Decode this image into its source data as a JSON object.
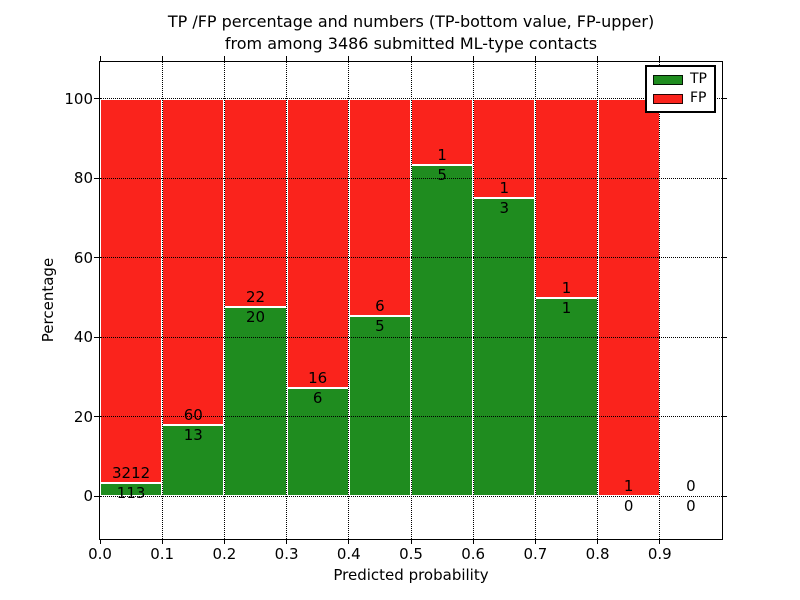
{
  "chart_data": {
    "type": "bar",
    "subtype": "stacked-percentage",
    "title_line1": "TP /FP percentage and numbers (TP-bottom value, FP-upper)",
    "title_line2": "from among 3486 submitted ML-type contacts",
    "xlabel": "Predicted probability",
    "ylabel": "Percentage",
    "total_contacts": 3486,
    "xlim": [
      0.0,
      1.0
    ],
    "ylim": [
      -10.8,
      109.3
    ],
    "x_ticks": [
      "0.0",
      "0.1",
      "0.2",
      "0.3",
      "0.4",
      "0.5",
      "0.6",
      "0.7",
      "0.8",
      "0.9"
    ],
    "y_ticks": [
      0,
      20,
      40,
      60,
      80,
      100
    ],
    "grid": "dotted",
    "legend_position": "upper-right",
    "bin_width": 0.1,
    "bins": [
      {
        "x0": 0.0,
        "x1": 0.1,
        "tp": 113,
        "fp": 3212
      },
      {
        "x0": 0.1,
        "x1": 0.2,
        "tp": 13,
        "fp": 60
      },
      {
        "x0": 0.2,
        "x1": 0.3,
        "tp": 20,
        "fp": 22
      },
      {
        "x0": 0.3,
        "x1": 0.4,
        "tp": 6,
        "fp": 16
      },
      {
        "x0": 0.4,
        "x1": 0.5,
        "tp": 5,
        "fp": 6
      },
      {
        "x0": 0.5,
        "x1": 0.6,
        "tp": 5,
        "fp": 1
      },
      {
        "x0": 0.6,
        "x1": 0.7,
        "tp": 3,
        "fp": 1
      },
      {
        "x0": 0.7,
        "x1": 0.8,
        "tp": 1,
        "fp": 1
      },
      {
        "x0": 0.8,
        "x1": 0.9,
        "tp": 0,
        "fp": 1
      },
      {
        "x0": 0.9,
        "x1": 1.0,
        "tp": 0,
        "fp": 0
      }
    ],
    "series": [
      {
        "name": "TP",
        "color": "#1f8c1f"
      },
      {
        "name": "FP",
        "color": "#fa231c"
      }
    ],
    "axis_color": "#000000",
    "background_color": "#ffffff"
  }
}
